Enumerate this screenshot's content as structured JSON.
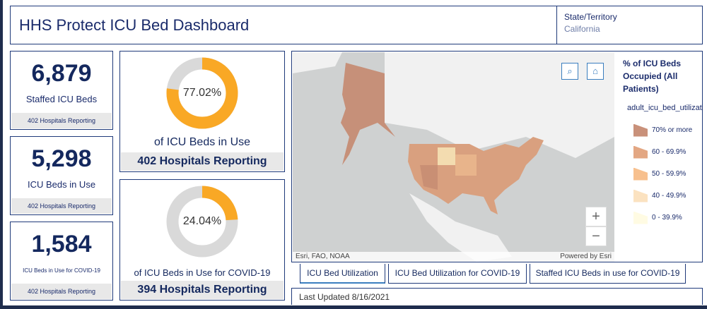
{
  "header": {
    "title": "HHS Protect ICU Bed Dashboard",
    "state_label": "State/Territory",
    "state_value": "California"
  },
  "stats": [
    {
      "value": "6,879",
      "label": "Staffed ICU Beds",
      "footer": "402 Hospitals Reporting"
    },
    {
      "value": "5,298",
      "label": "ICU Beds in Use",
      "footer": "402 Hospitals Reporting"
    },
    {
      "value": "1,584",
      "label": "ICU Beds in Use for COVID-19",
      "footer": "402 Hospitals Reporting"
    }
  ],
  "donuts": [
    {
      "percent": 77.02,
      "percent_text": "77.02%",
      "caption": "of ICU Beds in Use",
      "footer": "402 Hospitals Reporting"
    },
    {
      "percent": 24.04,
      "percent_text": "24.04%",
      "caption": "of ICU Beds in Use for COVID-19",
      "footer": "394 Hospitals Reporting"
    }
  ],
  "colors": {
    "accent": "#f9a825",
    "track": "#d9d9d9",
    "navy": "#14285e"
  },
  "map": {
    "attribution": "Esri, FAO, NOAA",
    "powered": "Powered by Esri",
    "zoom_in": "+",
    "zoom_out": "−"
  },
  "legend": {
    "title": "% of ICU Beds Occupied (All Patients)",
    "field": "adult_icu_bed_utilization",
    "items": [
      {
        "label": "70% or more",
        "color": "#c9917a"
      },
      {
        "label": "60 - 69.9%",
        "color": "#e3a783"
      },
      {
        "label": "50 - 59.9%",
        "color": "#f7c08e"
      },
      {
        "label": "40 - 49.9%",
        "color": "#fbe2c0"
      },
      {
        "label": "0 - 39.9%",
        "color": "#fffbe3"
      }
    ]
  },
  "tabs": [
    "ICU Bed Utilization",
    "ICU Bed Utilization for COVID-19",
    "Staffed ICU Beds in use for COVID-19"
  ],
  "last_updated": "Last Updated 8/16/2021"
}
